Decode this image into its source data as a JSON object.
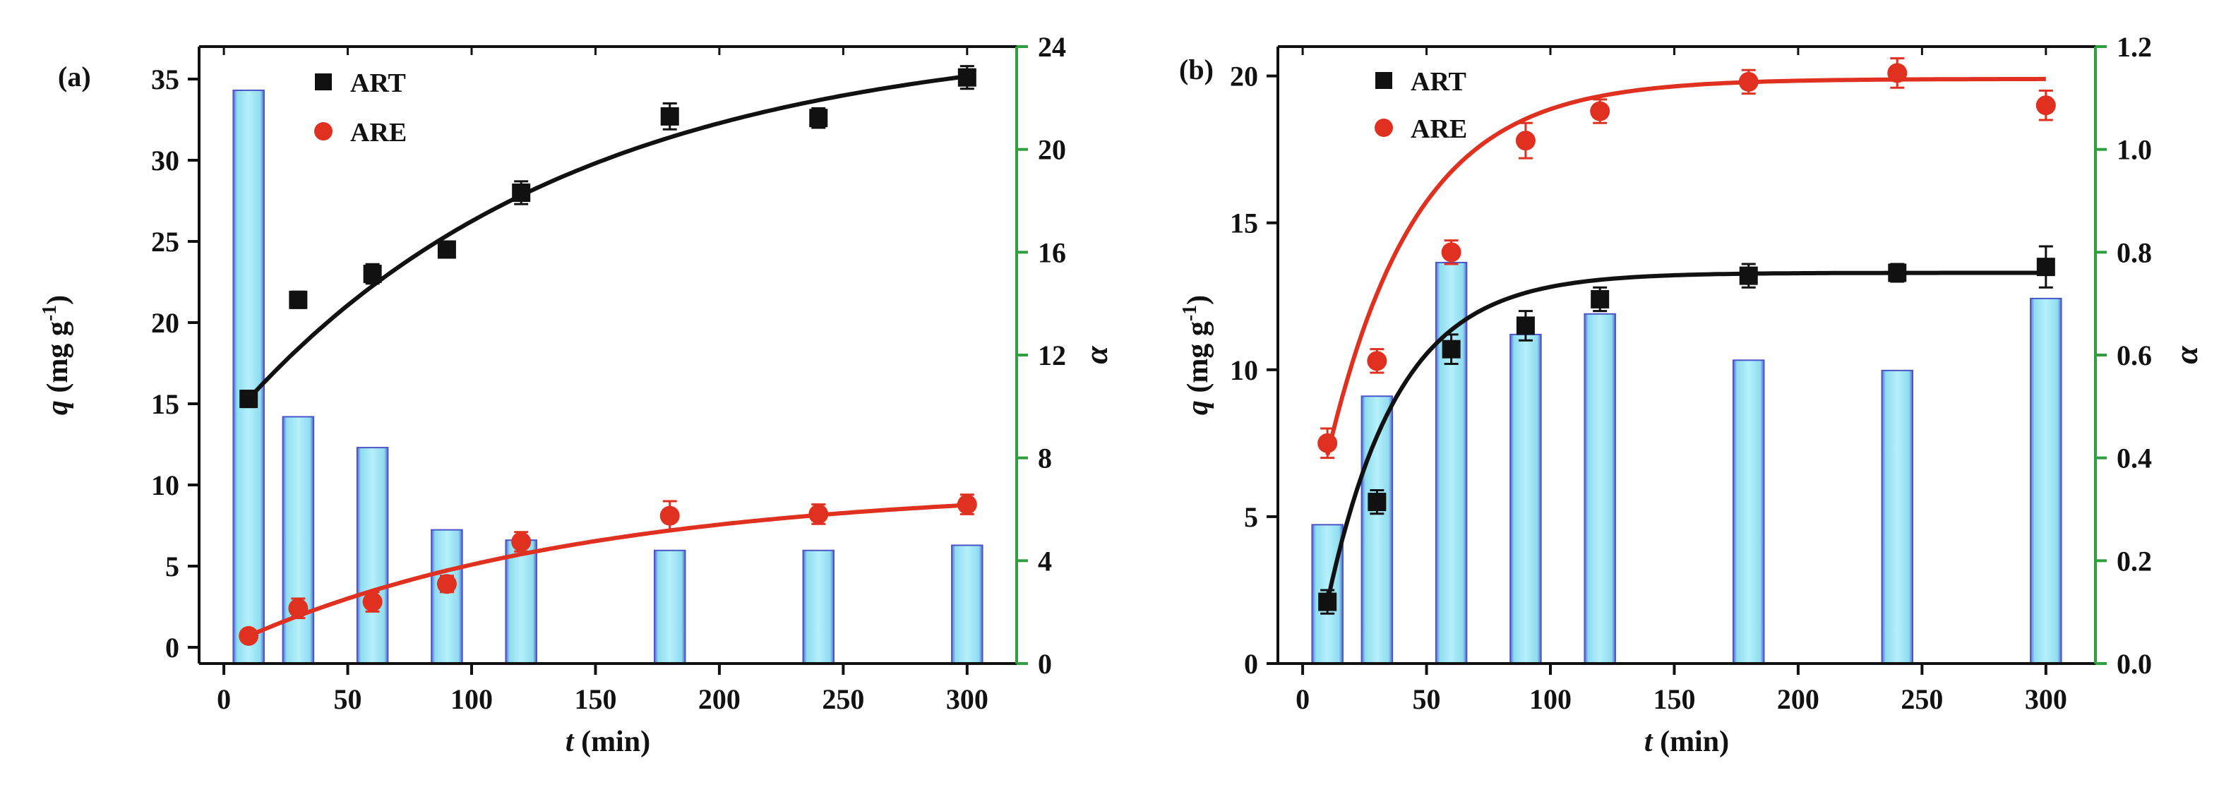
{
  "chart_data": [
    {
      "type": "bar+scatter",
      "panel_label": "(a)",
      "xlabel_var": "t",
      "xlabel_unit": " (min)",
      "ylabel_var": "q",
      "ylabel_unit_pre": " (mg g",
      "ylabel_sup": "-1",
      "ylabel_unit_post": ")",
      "y2label": "α",
      "xlim": [
        -10,
        320
      ],
      "ylim": [
        -1,
        37
      ],
      "y2lim": [
        0,
        24
      ],
      "xticks": [
        0,
        50,
        100,
        150,
        200,
        250,
        300
      ],
      "yticks": [
        0,
        5,
        10,
        15,
        20,
        25,
        30,
        35
      ],
      "y2ticks": [
        0,
        4,
        8,
        12,
        16,
        20,
        24
      ],
      "x": [
        10,
        30,
        60,
        90,
        120,
        180,
        240,
        300
      ],
      "bars_alpha": [
        22.3,
        9.6,
        8.4,
        5.2,
        4.8,
        4.4,
        4.4,
        4.6
      ],
      "series": [
        {
          "name": "ART",
          "color": "#111111",
          "marker": "square",
          "values": [
            15.3,
            21.4,
            23.0,
            24.5,
            28.0,
            32.7,
            32.6,
            35.1
          ],
          "errors": [
            0.5,
            0.5,
            0.6,
            0.5,
            0.7,
            0.8,
            0.6,
            0.7
          ],
          "fit": {
            "qe": 37.8,
            "k": 0.0074,
            "x0": 10,
            "y0": 15.3
          }
        },
        {
          "name": "ARE",
          "color": "#e03020",
          "marker": "circle",
          "values": [
            0.7,
            2.4,
            2.8,
            3.9,
            6.5,
            8.1,
            8.2,
            8.8
          ],
          "errors": [
            0.3,
            0.6,
            0.6,
            0.5,
            0.6,
            0.9,
            0.6,
            0.6
          ],
          "fit": {
            "qe": 9.9,
            "k": 0.0072,
            "x0": 10,
            "y0": 0.7
          }
        }
      ]
    },
    {
      "type": "bar+scatter",
      "panel_label": "(b)",
      "xlabel_var": "t",
      "xlabel_unit": " (min)",
      "ylabel_var": "q",
      "ylabel_unit_pre": " (mg g",
      "ylabel_sup": "-1",
      "ylabel_unit_post": ")",
      "y2label": "α",
      "xlim": [
        -10,
        320
      ],
      "ylim": [
        0,
        21
      ],
      "y2lim": [
        0.0,
        1.2
      ],
      "xticks": [
        0,
        50,
        100,
        150,
        200,
        250,
        300
      ],
      "yticks": [
        0,
        5,
        10,
        15,
        20
      ],
      "y2ticks": [
        0.0,
        0.2,
        0.4,
        0.6,
        0.8,
        1.0,
        1.2
      ],
      "x": [
        10,
        30,
        60,
        90,
        120,
        180,
        240,
        300
      ],
      "bars_alpha": [
        0.27,
        0.52,
        0.78,
        0.64,
        0.68,
        0.59,
        0.57,
        0.71
      ],
      "series": [
        {
          "name": "ART",
          "color": "#111111",
          "marker": "square",
          "values": [
            2.1,
            5.5,
            10.7,
            11.5,
            12.4,
            13.2,
            13.3,
            13.5
          ],
          "errors": [
            0.4,
            0.4,
            0.5,
            0.5,
            0.4,
            0.4,
            0.3,
            0.7
          ],
          "fit": {
            "qe": 13.3,
            "k": 0.035,
            "x0": 10,
            "y0": 2.1
          }
        },
        {
          "name": "ARE",
          "color": "#e03020",
          "marker": "circle",
          "values": [
            7.5,
            10.3,
            14.0,
            17.8,
            18.8,
            19.8,
            20.1,
            19.0
          ],
          "errors": [
            0.5,
            0.4,
            0.4,
            0.6,
            0.4,
            0.4,
            0.5,
            0.5
          ],
          "fit": {
            "qe": 19.9,
            "k": 0.028,
            "x0": 10,
            "y0": 7.1
          }
        }
      ]
    }
  ]
}
